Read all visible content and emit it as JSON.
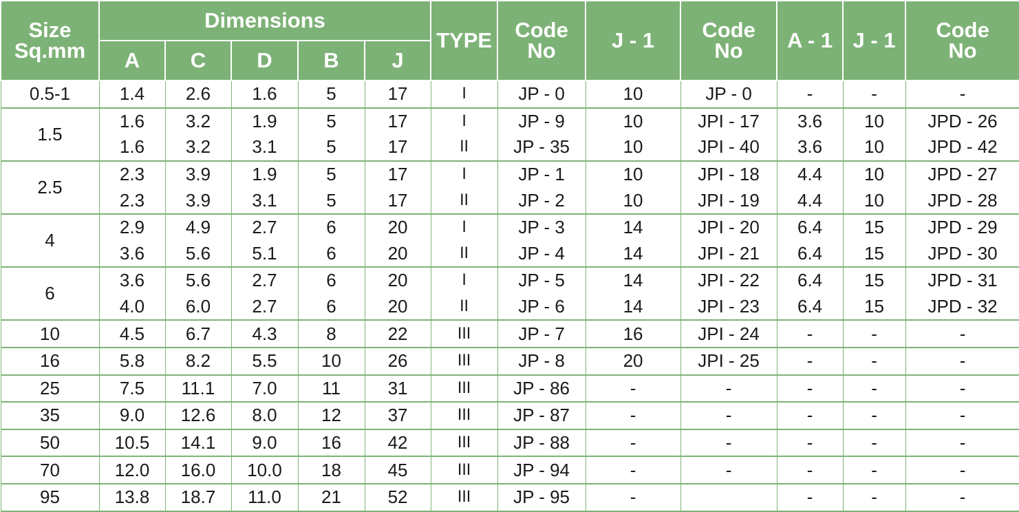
{
  "headers": {
    "size": "Size\nSq.mm",
    "dimensions": "Dimensions",
    "dim_cols": [
      "A",
      "C",
      "D",
      "B",
      "J"
    ],
    "type": "TYPE",
    "code_no": "Code\nNo",
    "j1": "J - 1",
    "code_no_2": "Code\nNo",
    "a1": "A - 1",
    "j1_2": "J - 1",
    "code_no_3": "Code\nNo"
  },
  "groups": [
    {
      "size": "0.5-1",
      "rows": [
        {
          "A": "1.4",
          "C": "2.6",
          "D": "1.6",
          "B": "5",
          "J": "17",
          "type": "I",
          "code": "JP - 0",
          "j1": "10",
          "code2": "JP - 0",
          "a1": "-",
          "j1b": "-",
          "code3": "-"
        }
      ]
    },
    {
      "size": "1.5",
      "rows": [
        {
          "A": "1.6",
          "C": "3.2",
          "D": "1.9",
          "B": "5",
          "J": "17",
          "type": "I",
          "code": "JP - 9",
          "j1": "10",
          "code2": "JPI - 17",
          "a1": "3.6",
          "j1b": "10",
          "code3": "JPD - 26"
        },
        {
          "A": "1.6",
          "C": "3.2",
          "D": "3.1",
          "B": "5",
          "J": "17",
          "type": "II",
          "code": "JP - 35",
          "j1": "10",
          "code2": "JPI - 40",
          "a1": "3.6",
          "j1b": "10",
          "code3": "JPD - 42"
        }
      ]
    },
    {
      "size": "2.5",
      "rows": [
        {
          "A": "2.3",
          "C": "3.9",
          "D": "1.9",
          "B": "5",
          "J": "17",
          "type": "I",
          "code": "JP - 1",
          "j1": "10",
          "code2": "JPI - 18",
          "a1": "4.4",
          "j1b": "10",
          "code3": "JPD - 27"
        },
        {
          "A": "2.3",
          "C": "3.9",
          "D": "3.1",
          "B": "5",
          "J": "17",
          "type": "II",
          "code": "JP - 2",
          "j1": "10",
          "code2": "JPI - 19",
          "a1": "4.4",
          "j1b": "10",
          "code3": "JPD - 28"
        }
      ]
    },
    {
      "size": "4",
      "rows": [
        {
          "A": "2.9",
          "C": "4.9",
          "D": "2.7",
          "B": "6",
          "J": "20",
          "type": "I",
          "code": "JP - 3",
          "j1": "14",
          "code2": "JPI - 20",
          "a1": "6.4",
          "j1b": "15",
          "code3": "JPD - 29"
        },
        {
          "A": "3.6",
          "C": "5.6",
          "D": "5.1",
          "B": "6",
          "J": "20",
          "type": "II",
          "code": "JP - 4",
          "j1": "14",
          "code2": "JPI - 21",
          "a1": "6.4",
          "j1b": "15",
          "code3": "JPD - 30"
        }
      ]
    },
    {
      "size": "6",
      "rows": [
        {
          "A": "3.6",
          "C": "5.6",
          "D": "2.7",
          "B": "6",
          "J": "20",
          "type": "I",
          "code": "JP - 5",
          "j1": "14",
          "code2": "JPI - 22",
          "a1": "6.4",
          "j1b": "15",
          "code3": "JPD - 31"
        },
        {
          "A": "4.0",
          "C": "6.0",
          "D": "2.7",
          "B": "6",
          "J": "20",
          "type": "II",
          "code": "JP - 6",
          "j1": "14",
          "code2": "JPI - 23",
          "a1": "6.4",
          "j1b": "15",
          "code3": "JPD - 32"
        }
      ]
    },
    {
      "size": "10",
      "rows": [
        {
          "A": "4.5",
          "C": "6.7",
          "D": "4.3",
          "B": "8",
          "J": "22",
          "type": "III",
          "code": "JP - 7",
          "j1": "16",
          "code2": "JPI - 24",
          "a1": "-",
          "j1b": "-",
          "code3": "-"
        }
      ]
    },
    {
      "size": "16",
      "rows": [
        {
          "A": "5.8",
          "C": "8.2",
          "D": "5.5",
          "B": "10",
          "J": "26",
          "type": "III",
          "code": "JP - 8",
          "j1": "20",
          "code2": "JPI - 25",
          "a1": "-",
          "j1b": "-",
          "code3": "-"
        }
      ]
    },
    {
      "size": "25",
      "rows": [
        {
          "A": "7.5",
          "C": "11.1",
          "D": "7.0",
          "B": "11",
          "J": "31",
          "type": "III",
          "code": "JP - 86",
          "j1": "-",
          "code2": "-",
          "a1": "-",
          "j1b": "-",
          "code3": "-"
        }
      ]
    },
    {
      "size": "35",
      "rows": [
        {
          "A": "9.0",
          "C": "12.6",
          "D": "8.0",
          "B": "12",
          "J": "37",
          "type": "III",
          "code": "JP - 87",
          "j1": "-",
          "code2": "-",
          "a1": "-",
          "j1b": "-",
          "code3": "-"
        }
      ]
    },
    {
      "size": "50",
      "rows": [
        {
          "A": "10.5",
          "C": "14.1",
          "D": "9.0",
          "B": "16",
          "J": "42",
          "type": "III",
          "code": "JP - 88",
          "j1": "-",
          "code2": "-",
          "a1": "-",
          "j1b": "-",
          "code3": "-"
        }
      ]
    },
    {
      "size": "70",
      "rows": [
        {
          "A": "12.0",
          "C": "16.0",
          "D": "10.0",
          "B": "18",
          "J": "45",
          "type": "III",
          "code": "JP - 94",
          "j1": "-",
          "code2": "-",
          "a1": "-",
          "j1b": "-",
          "code3": "-"
        }
      ]
    },
    {
      "size": "95",
      "rows": [
        {
          "A": "13.8",
          "C": "18.7",
          "D": "11.0",
          "B": "21",
          "J": "52",
          "type": "III",
          "code": "JP - 95",
          "j1": "-",
          "code2": "",
          "a1": "-",
          "j1b": "-",
          "code3": "-"
        }
      ]
    }
  ]
}
